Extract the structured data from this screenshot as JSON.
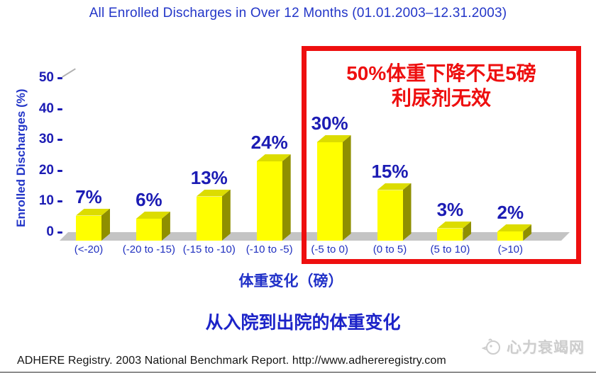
{
  "chart_data": {
    "type": "bar",
    "title": "All Enrolled Discharges in Over 12 Months (01.01.2003–12.31.2003)",
    "categories": [
      "(<-20)",
      "(-20 to -15)",
      "(-15 to -10)",
      "(-10 to -5)",
      "(-5 to 0)",
      "(0 to 5)",
      "(5 to 10)",
      "(>10)"
    ],
    "values": [
      7,
      6,
      13,
      24,
      30,
      15,
      3,
      2
    ],
    "value_labels": [
      "7%",
      "6%",
      "13%",
      "24%",
      "30%",
      "15%",
      "3%",
      "2%"
    ],
    "xlabel": "体重变化（磅）",
    "ylabel": "Enrolled Discharges (%)",
    "ylim": [
      0,
      50
    ],
    "yticks": [
      0,
      10,
      20,
      30,
      40,
      50
    ],
    "grid": false,
    "legend": false,
    "style": "3d-bars",
    "bar_color": "#ffff00",
    "bar_top_color": "#dcdc00",
    "bar_side_color": "#8f8f00",
    "floor_color": "#c4c4c4",
    "label_color": "#1c1cb4",
    "axis_text_color": "#2336c8"
  },
  "annotation": {
    "lines": [
      "50%体重下降不足5磅",
      "利尿剂无效"
    ],
    "text_color": "#ee0f0f",
    "box_color": "#ee0f0f",
    "highlighted_categories": [
      "(-5 to 0)",
      "(0 to 5)",
      "(5 to 10)",
      "(>10)"
    ]
  },
  "subtitle": "从入院到出院的体重变化",
  "footer": {
    "source": "ADHERE Registry. 2003 National Benchmark Report. http://www.adhereregistry.com"
  },
  "watermark": {
    "text": "心力衰竭网"
  }
}
